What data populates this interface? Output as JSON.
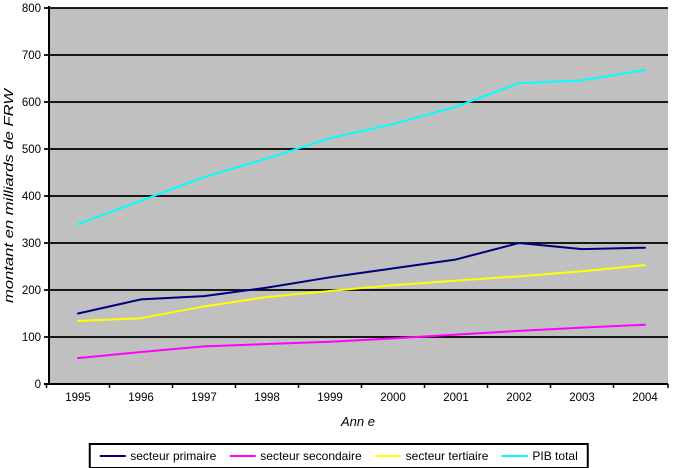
{
  "chart_data": {
    "type": "line",
    "title": "",
    "xlabel": "Ann e",
    "ylabel": "montant en milliards de FRW",
    "categories": [
      "1995",
      "1996",
      "1997",
      "1998",
      "1999",
      "2000",
      "2001",
      "2002",
      "2003",
      "2004"
    ],
    "series": [
      {
        "name": "secteur primaire",
        "color": "#000080",
        "values": [
          150,
          180,
          187,
          205,
          227,
          246,
          265,
          300,
          287,
          290
        ]
      },
      {
        "name": "secteur secondaire",
        "color": "#FF00FF",
        "values": [
          55,
          68,
          80,
          85,
          90,
          97,
          105,
          113,
          120,
          126
        ]
      },
      {
        "name": "secteur tertiaire",
        "color": "#FFFF00",
        "values": [
          134,
          140,
          165,
          185,
          198,
          210,
          220,
          229,
          240,
          253
        ]
      },
      {
        "name": "PIB total",
        "color": "#00FFFF",
        "values": [
          340,
          390,
          440,
          480,
          523,
          553,
          590,
          640,
          646,
          668
        ]
      }
    ],
    "ylim": [
      0,
      800
    ],
    "ytick_step": 100,
    "yticks": [
      "0",
      "100",
      "200",
      "300",
      "400",
      "500",
      "600",
      "700",
      "800"
    ],
    "grid": true,
    "legend_position": "bottom",
    "colors": {
      "plot_background": "#C0C0C0",
      "page_background": "#FFFFFF",
      "gridline": "#000000",
      "axis": "#000000"
    }
  }
}
